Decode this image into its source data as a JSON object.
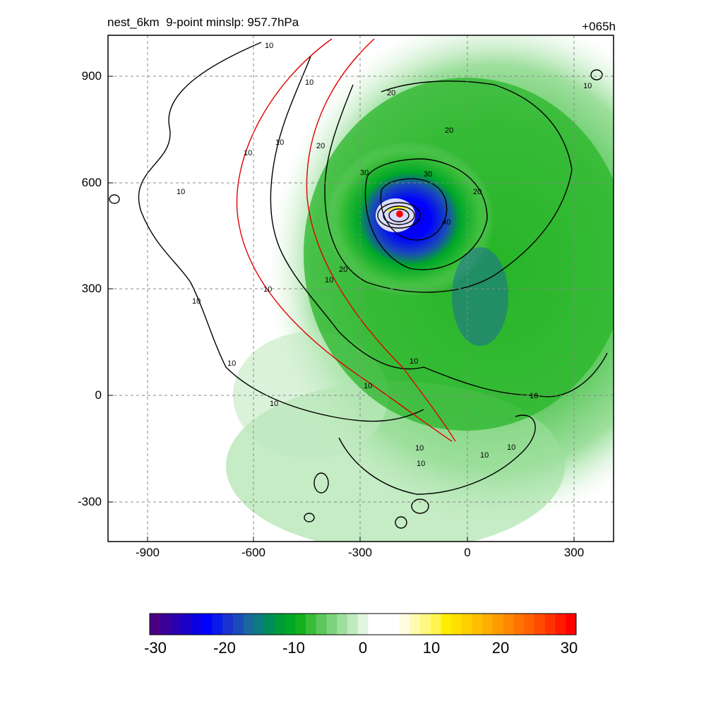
{
  "title_left": "nest_6km  9-point minslp: 957.7hPa",
  "title_right": "+065h",
  "x_ticks": [
    "-900",
    "-600",
    "-300",
    "0",
    "300"
  ],
  "y_ticks": [
    "900",
    "600",
    "300",
    "0",
    "-300"
  ],
  "colorbar_ticks": [
    "-30",
    "-20",
    "-10",
    "0",
    "10",
    "20",
    "30"
  ],
  "contour_labels": [
    "10",
    "20",
    "30",
    "40"
  ],
  "colors": {
    "track_line": "#e00000",
    "contour": "#000000",
    "center_marker": "#ff0000"
  },
  "colorbar_colors": [
    "#4b0082",
    "#3a0098",
    "#2a00b0",
    "#1a00c8",
    "#0a00e0",
    "#0000ff",
    "#0a1ae8",
    "#1a33d0",
    "#1a4cb8",
    "#1a66a0",
    "#0d7a80",
    "#008c5a",
    "#009a3a",
    "#00a828",
    "#14b01e",
    "#38bd38",
    "#5ac85a",
    "#7cd47c",
    "#9edf9e",
    "#c0eac0",
    "#dff5df",
    "#ffffff",
    "#ffffff",
    "#ffffff",
    "#fffde0",
    "#fffbb0",
    "#fff880",
    "#fff550",
    "#ffee00",
    "#ffe000",
    "#ffd000",
    "#ffbf00",
    "#ffad00",
    "#ff9a00",
    "#ff8800",
    "#ff7400",
    "#ff6000",
    "#ff4a00",
    "#ff3300",
    "#ff1a00",
    "#ff0000"
  ]
}
